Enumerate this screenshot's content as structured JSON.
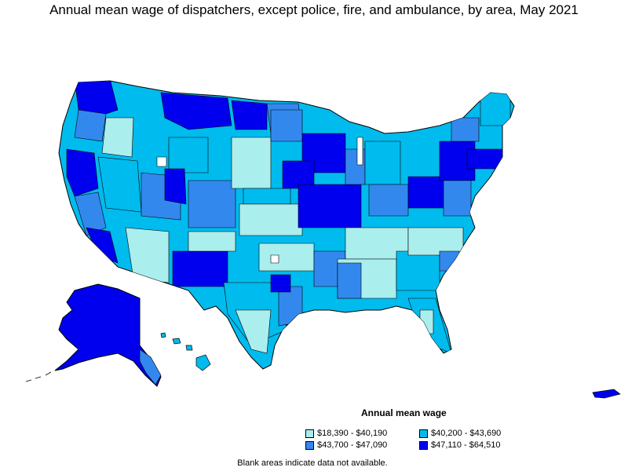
{
  "title": "Annual mean wage of dispatchers, except police, fire, and ambulance, by area, May 2021",
  "legend": {
    "title": "Annual mean wage",
    "items": [
      {
        "label": "$18,390 - $40,190",
        "color": "#aaeeee"
      },
      {
        "label": "$40,200 - $43,690",
        "color": "#00bbee"
      },
      {
        "label": "$43,700 - $47,090",
        "color": "#3388ee"
      },
      {
        "label": "$47,110 - $64,510",
        "color": "#0000ee"
      }
    ]
  },
  "note": "Blank areas indicate data not available.",
  "colors": {
    "lowest": "#aaeeee",
    "low": "#00bbee",
    "high": "#3388ee",
    "highest": "#0000ee",
    "border": "#000000"
  }
}
